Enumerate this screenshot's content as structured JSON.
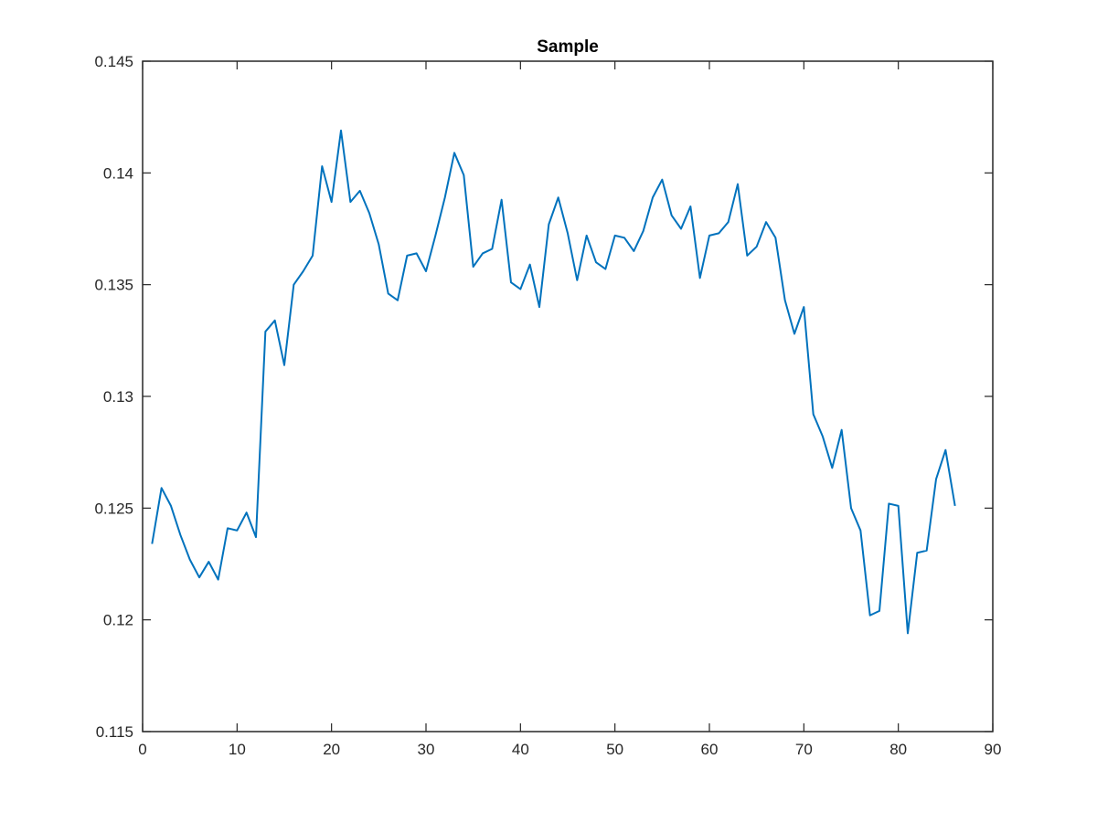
{
  "chart_data": {
    "type": "line",
    "title": "Sample",
    "xlabel": "",
    "ylabel": "",
    "xlim": [
      0,
      90
    ],
    "ylim": [
      0.115,
      0.145
    ],
    "xticks": [
      0,
      10,
      20,
      30,
      40,
      50,
      60,
      70,
      80,
      90
    ],
    "xtick_labels": [
      "0",
      "10",
      "20",
      "30",
      "40",
      "50",
      "60",
      "70",
      "80",
      "90"
    ],
    "yticks": [
      0.115,
      0.12,
      0.125,
      0.13,
      0.135,
      0.14,
      0.145
    ],
    "ytick_labels": [
      "0.115",
      "0.12",
      "0.125",
      "0.13",
      "0.135",
      "0.14",
      "0.145"
    ],
    "grid": false,
    "legend": "none",
    "series": [
      {
        "color": "#0072bd",
        "x": [
          1,
          2,
          3,
          4,
          5,
          6,
          7,
          8,
          9,
          10,
          11,
          12,
          13,
          14,
          15,
          16,
          17,
          18,
          19,
          20,
          21,
          22,
          23,
          24,
          25,
          26,
          27,
          28,
          29,
          30,
          31,
          32,
          33,
          34,
          35,
          36,
          37,
          38,
          39,
          40,
          41,
          42,
          43,
          44,
          45,
          46,
          47,
          48,
          49,
          50,
          51,
          52,
          53,
          54,
          55,
          56,
          57,
          58,
          59,
          60,
          61,
          62,
          63,
          64,
          65,
          66,
          67,
          68,
          69,
          70,
          71,
          72,
          73,
          74,
          75,
          76,
          77,
          78,
          79,
          80,
          81,
          82,
          83,
          84,
          85,
          86
        ],
        "values": [
          0.1234,
          0.1259,
          0.1251,
          0.1238,
          0.1227,
          0.1219,
          0.1226,
          0.1218,
          0.1241,
          0.124,
          0.1248,
          0.1237,
          0.1329,
          0.1334,
          0.1314,
          0.135,
          0.1356,
          0.1363,
          0.1403,
          0.1387,
          0.1419,
          0.1387,
          0.1392,
          0.1382,
          0.1368,
          0.1346,
          0.1343,
          0.1363,
          0.1364,
          0.1356,
          0.1372,
          0.1389,
          0.1409,
          0.1399,
          0.1358,
          0.1364,
          0.1366,
          0.1388,
          0.1351,
          0.1348,
          0.1359,
          0.134,
          0.1377,
          0.1389,
          0.1373,
          0.1352,
          0.1372,
          0.136,
          0.1357,
          0.1372,
          0.1371,
          0.1365,
          0.1374,
          0.1389,
          0.1397,
          0.1381,
          0.1375,
          0.1385,
          0.1353,
          0.1372,
          0.1373,
          0.1378,
          0.1395,
          0.1363,
          0.1367,
          0.1378,
          0.1371,
          0.1343,
          0.1328,
          0.134,
          0.1292,
          0.1282,
          0.1268,
          0.1285,
          0.125,
          0.124,
          0.1202,
          0.1204,
          0.1252,
          0.1251,
          0.1194,
          0.123,
          0.1231,
          0.1263,
          0.1276,
          0.1251
        ]
      }
    ]
  }
}
